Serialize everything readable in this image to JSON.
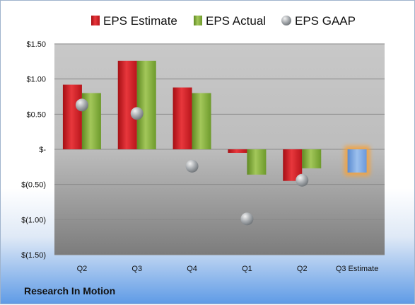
{
  "chart_data": {
    "type": "bar",
    "categories": [
      "Q2",
      "Q3",
      "Q4",
      "Q1",
      "Q2",
      "Q3 Estimate"
    ],
    "ylim": [
      -1.5,
      1.5
    ],
    "y_ticks": [
      1.5,
      1.0,
      0.5,
      0,
      -0.5,
      -1.0,
      -1.5
    ],
    "y_tick_labels": [
      "$1.50",
      "$1.00",
      "$0.50",
      "$-",
      "$(0.50)",
      "$(1.00)",
      "$(1.50)"
    ],
    "grid": true,
    "legend_position": "top",
    "series": [
      {
        "name": "EPS Estimate",
        "kind": "bar",
        "color": "#d9262c",
        "values": [
          0.92,
          1.26,
          0.88,
          -0.05,
          -0.45,
          null
        ]
      },
      {
        "name": "EPS Actual",
        "kind": "bar",
        "color": "#8fb43c",
        "values": [
          0.8,
          1.26,
          0.8,
          -0.36,
          -0.27,
          null
        ]
      },
      {
        "name": "EPS GAAP",
        "kind": "marker",
        "color": "#9ea3a8",
        "values": [
          0.63,
          0.51,
          -0.24,
          -0.99,
          -0.44,
          null
        ]
      }
    ],
    "estimate_bar": {
      "category": "Q3 Estimate",
      "value": -0.33,
      "color": "#7aa7e0",
      "glow": "#f4a33c"
    }
  },
  "footer": {
    "title": "Research In Motion"
  }
}
